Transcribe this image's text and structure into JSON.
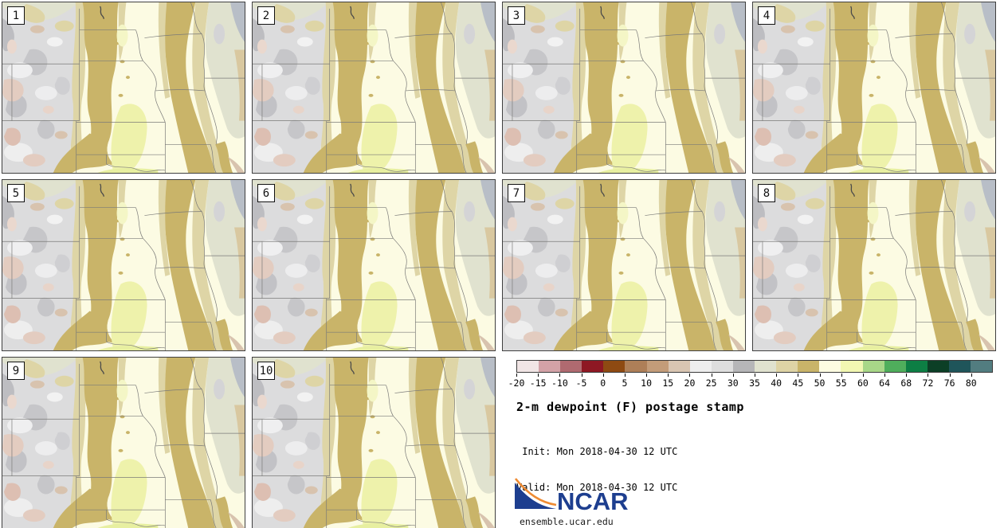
{
  "figure": {
    "title": "2-m dewpoint (F) postage stamp",
    "init_label": " Init: Mon 2018-04-30 12 UTC",
    "valid_label": "Valid: Mon 2018-04-30 12 UTC"
  },
  "panels": [
    {
      "label": "1"
    },
    {
      "label": "2"
    },
    {
      "label": "3"
    },
    {
      "label": "4"
    },
    {
      "label": "5"
    },
    {
      "label": "6"
    },
    {
      "label": "7"
    },
    {
      "label": "8"
    },
    {
      "label": "9"
    },
    {
      "label": "10"
    }
  ],
  "colorbar": {
    "tick_labels": [
      "-20",
      "-15",
      "-10",
      "-5",
      "0",
      "5",
      "10",
      "15",
      "20",
      "25",
      "30",
      "35",
      "40",
      "45",
      "50",
      "55",
      "60",
      "64",
      "68",
      "72",
      "76",
      "80"
    ],
    "segment_colors": [
      "#f1e5e5",
      "#d3a2a7",
      "#b06a70",
      "#8e1823",
      "#8e4a12",
      "#ae7f58",
      "#c39c79",
      "#d9c5b2",
      "#eeeeee",
      "#dedede",
      "#b6b6b8",
      "#e0e2cf",
      "#ded3a5",
      "#c9b469",
      "#fdfce2",
      "#f2f7b2",
      "#a8d788",
      "#4fae5c",
      "#0d7e44",
      "#0c3f26",
      "#1f555a",
      "#527d80"
    ]
  },
  "branding": {
    "logo_text": "NCAR",
    "site_url": "ensemble.ucar.edu",
    "logo_blue": "#1d3e8f",
    "logo_orange": "#ef8b33"
  },
  "map_palette": {
    "base_ivory": "#fcfbe3",
    "dark_khaki_band": "#c9b469",
    "light_khaki": "#ded5a6",
    "pale_gray_green": "#e0e2cf",
    "yellow_green": "#eef2ab",
    "gray_light": "#dcdcdd",
    "gray_medium": "#bdbdc1",
    "pink": "#e3ccc0",
    "tan": "#d8c3ae",
    "lake_gray": "#b8bec7",
    "state_line": "#7a7a78",
    "panel_border": "#3f3f3f"
  },
  "chart_data": {
    "type": "heatmap",
    "subtype": "filled-contour map grid (ensemble postage stamps)",
    "title": "2-m dewpoint (F) postage stamp",
    "variable": "2-m dewpoint",
    "units": "F",
    "init": "Mon 2018-04-30 12 UTC",
    "valid": "Mon 2018-04-30 12 UTC",
    "ensemble_members": [
      "1",
      "2",
      "3",
      "4",
      "5",
      "6",
      "7",
      "8",
      "9",
      "10"
    ],
    "grid_layout": {
      "columns": 4,
      "rows": 3,
      "panels_in_last_row": 2
    },
    "region_depicted": "Central United States (Great Plains and Upper Midwest)",
    "colorbar_levels": [
      -20,
      -15,
      -10,
      -5,
      0,
      5,
      10,
      15,
      20,
      25,
      30,
      35,
      40,
      45,
      50,
      55,
      60,
      64,
      68,
      72,
      76,
      80
    ],
    "colorbar_colors": [
      "#f1e5e5",
      "#d3a2a7",
      "#b06a70",
      "#8e1823",
      "#8e4a12",
      "#ae7f58",
      "#c39c79",
      "#d9c5b2",
      "#eeeeee",
      "#dedede",
      "#b6b6b8",
      "#e0e2cf",
      "#ded3a5",
      "#c9b469",
      "#fdfce2",
      "#f2f7b2",
      "#a8d788",
      "#4fae5c",
      "#0d7e44",
      "#0c3f26",
      "#1f555a",
      "#527d80"
    ],
    "legend_position": "bottom-right",
    "notes": "All 10 member maps show nearly identical dewpoint patterns: dry mottled gray/pink air over the Rockies, two khaki 45-50F bands flanking a moist 50-60F ivory/yellow corridor from Nebraska to Oklahoma."
  }
}
